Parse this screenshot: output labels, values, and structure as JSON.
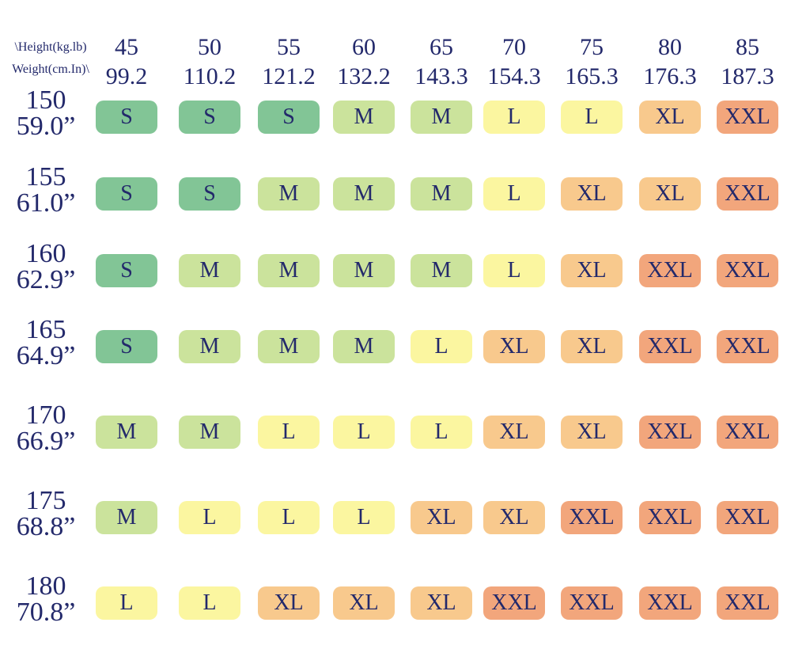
{
  "header": {
    "corner_top": "\\Height(kg.lb)",
    "corner_bottom": "Weight(cm.In)\\"
  },
  "columns": [
    {
      "kg": 45,
      "lb": 99.2
    },
    {
      "kg": 50,
      "lb": 110.2
    },
    {
      "kg": 55,
      "lb": 121.2
    },
    {
      "kg": 60,
      "lb": 132.2
    },
    {
      "kg": 65,
      "lb": 143.3
    },
    {
      "kg": 70,
      "lb": 154.3
    },
    {
      "kg": 75,
      "lb": 165.3
    },
    {
      "kg": 80,
      "lb": 176.3
    },
    {
      "kg": 85,
      "lb": 187.3
    }
  ],
  "rows": [
    {
      "cm": 150,
      "in": "59.0”",
      "sizes": [
        "S",
        "S",
        "S",
        "M",
        "M",
        "L",
        "L",
        "XL",
        "XXL"
      ]
    },
    {
      "cm": 155,
      "in": "61.0”",
      "sizes": [
        "S",
        "S",
        "M",
        "M",
        "M",
        "L",
        "XL",
        "XL",
        "XXL"
      ]
    },
    {
      "cm": 160,
      "in": "62.9”",
      "sizes": [
        "S",
        "M",
        "M",
        "M",
        "M",
        "L",
        "XL",
        "XXL",
        "XXL"
      ]
    },
    {
      "cm": 165,
      "in": "64.9”",
      "sizes": [
        "S",
        "M",
        "M",
        "M",
        "L",
        "XL",
        "XL",
        "XXL",
        "XXL"
      ]
    },
    {
      "cm": 170,
      "in": "66.9”",
      "sizes": [
        "M",
        "M",
        "L",
        "L",
        "L",
        "XL",
        "XL",
        "XXL",
        "XXL"
      ]
    },
    {
      "cm": 175,
      "in": "68.8”",
      "sizes": [
        "M",
        "L",
        "L",
        "L",
        "XL",
        "XL",
        "XXL",
        "XXL",
        "XXL"
      ]
    },
    {
      "cm": 180,
      "in": "70.8”",
      "sizes": [
        "L",
        "L",
        "XL",
        "XL",
        "XL",
        "XXL",
        "XXL",
        "XXL",
        "XXL"
      ]
    }
  ],
  "colors": {
    "S": "#82c596",
    "M": "#cbe39c",
    "L": "#fbf6a0",
    "XL": "#f8c98d",
    "XXL": "#f2a67c"
  }
}
